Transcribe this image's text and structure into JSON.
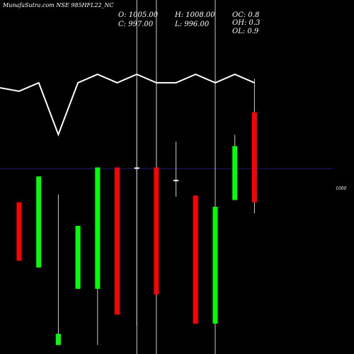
{
  "header": {
    "title": "MunafaSutra.com NSE 985HFL22_NC",
    "open_label": "O: 1005.00",
    "close_label": "C: 997.00",
    "high_label": "H: 1008.00",
    "low_label": "L: 996.00",
    "oc_label": "OC: 0.8",
    "oh_label": "OH: 0.3",
    "ol_label": "OL: 0.9"
  },
  "chart_data": {
    "type": "candlestick",
    "title": "MunafaSutra.com NSE 985HFL22_NC",
    "reference_level": 1000,
    "reference_label": "1000",
    "ylim": [
      983.5,
      1015.0
    ],
    "colors": {
      "up": "#00ff00",
      "down": "#ff0000",
      "doji": "#ffffff",
      "background": "#000000",
      "reference": "#2a2a9a",
      "line": "#ffffff",
      "marker": "#ffffff"
    },
    "candles": [
      {
        "open": 997.0,
        "close": 991.8,
        "high": 997.0,
        "low": 991.8
      },
      {
        "open": 991.2,
        "close": 999.3,
        "high": 999.3,
        "low": 991.2
      },
      {
        "open": 984.3,
        "close": 985.3,
        "high": 997.7,
        "low": 984.3
      },
      {
        "open": 989.3,
        "close": 994.9,
        "high": 994.9,
        "low": 989.3
      },
      {
        "open": 989.3,
        "close": 1000.1,
        "high": 1000.1,
        "low": 984.3
      },
      {
        "open": 1000.1,
        "close": 987.0,
        "high": 1000.1,
        "low": 987.0
      },
      {
        "open": 1000.0,
        "close": 1000.1,
        "high": 1008.0,
        "low": 986.0
      },
      {
        "open": 1000.1,
        "close": 988.8,
        "high": 1008.0,
        "low": 988.8
      },
      {
        "open": 999.0,
        "close": 998.9,
        "high": 1002.4,
        "low": 997.5
      },
      {
        "open": 997.6,
        "close": 986.2,
        "high": 997.6,
        "low": 986.2
      },
      {
        "open": 986.2,
        "close": 996.6,
        "high": 1008.0,
        "low": 986.2
      },
      {
        "open": 997.2,
        "close": 1002.0,
        "high": 1003.0,
        "low": 997.2
      },
      {
        "open": 1005.0,
        "close": 997.0,
        "high": 1008.0,
        "low": 996.0
      }
    ],
    "line_series": [
      0.72,
      0.86,
      0.0,
      0.86,
      1.0,
      0.86,
      1.0,
      0.86,
      0.86,
      1.0,
      0.86,
      1.0,
      0.86
    ],
    "high_markers": [
      6,
      7,
      10
    ]
  }
}
